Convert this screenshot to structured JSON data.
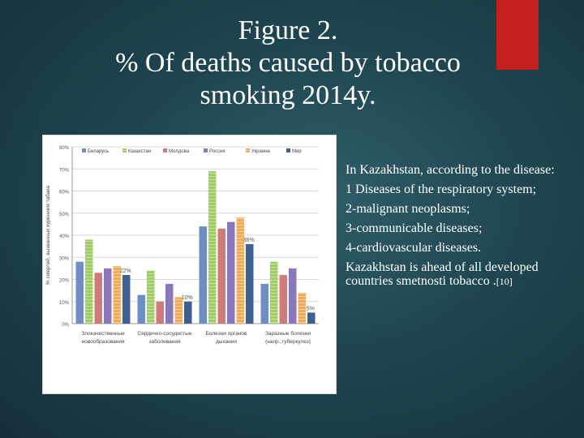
{
  "title": {
    "lines": [
      "Figure 2.",
      "% Of deaths caused by tobacco",
      "smoking 2014y."
    ]
  },
  "colors": {
    "accent": "#c41e1e",
    "series": [
      "#6f8fc4",
      "#9fcc65",
      "#d07a7a",
      "#8b78b8",
      "#f2a95a",
      "#3d5f91"
    ]
  },
  "chart_data": {
    "type": "bar",
    "ylabel": "% смертей, вызванных курением табака",
    "ylim": [
      0,
      80
    ],
    "yticks": [
      "0%",
      "10%",
      "20%",
      "30%",
      "40%",
      "50%",
      "60%",
      "70%",
      "80%"
    ],
    "grid": true,
    "legend_position": "top",
    "categories": [
      [
        "Злокачественные",
        "новообразования"
      ],
      [
        "Сердечно-сосудистые",
        "заболевания"
      ],
      [
        "Болезни органов",
        "дыхания"
      ],
      [
        "Заразные болезни",
        "(напр.,туберкулез)"
      ]
    ],
    "series": [
      {
        "name": "Беларусь",
        "values": [
          28,
          13,
          44,
          18
        ]
      },
      {
        "name": "Казахстан",
        "values": [
          38,
          24,
          69,
          28
        ]
      },
      {
        "name": "Молдова",
        "values": [
          23,
          10,
          43,
          22
        ]
      },
      {
        "name": "Россия",
        "values": [
          25,
          18,
          46,
          25
        ]
      },
      {
        "name": "Украина",
        "values": [
          26,
          12,
          48,
          14
        ]
      },
      {
        "name": "Мир",
        "values": [
          22,
          10,
          36,
          5
        ]
      }
    ],
    "data_labels": [
      {
        "category": 0,
        "series": 5,
        "text": "22%"
      },
      {
        "category": 1,
        "series": 5,
        "text": "10%"
      },
      {
        "category": 2,
        "series": 5,
        "text": "36%"
      },
      {
        "category": 3,
        "series": 5,
        "text": "5%"
      }
    ]
  },
  "side_text": {
    "intro": "In Kazakhstan, according to the disease:",
    "items": [
      "1 Diseases of the respiratory system;",
      "2-malignant neoplasms;",
      "3-communicable diseases;",
      "4-cardiovascular diseases."
    ],
    "conclusion": "Kazakhstan is ahead of all developed countries smetnosti tobacco .",
    "reference": "[10]"
  }
}
